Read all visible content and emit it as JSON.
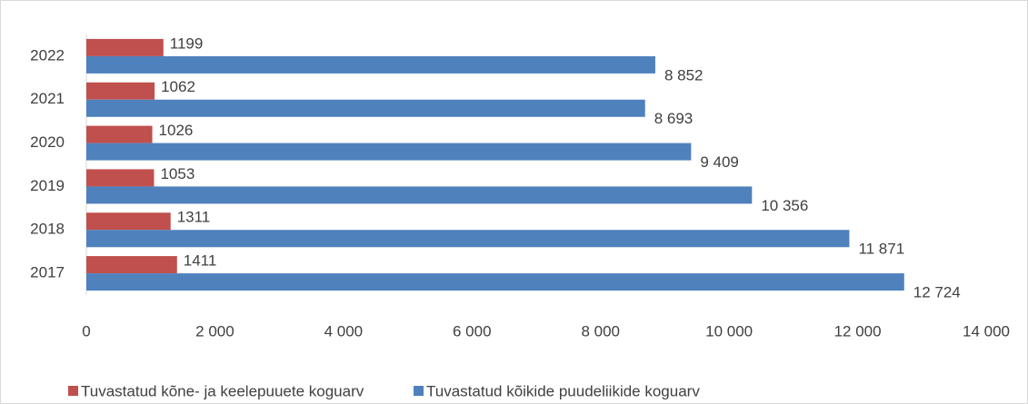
{
  "chart_data": {
    "type": "hbar",
    "categories": [
      "2022",
      "2021",
      "2020",
      "2019",
      "2018",
      "2017"
    ],
    "series": [
      {
        "name": "Tuvastatud kõne- ja keelepuuete koguarv",
        "color": "#c0504d",
        "values": [
          1199,
          1062,
          1026,
          1053,
          1311,
          1411
        ]
      },
      {
        "name": "Tuvastatud kõikide puudeliikide koguarv",
        "color": "#4f81bd",
        "values": [
          8852,
          8693,
          9409,
          10356,
          11871,
          12724
        ],
        "value_labels": [
          "8 852",
          "8 693",
          "9 409",
          "10 356",
          "11 871",
          "12 724"
        ]
      }
    ],
    "xlim": [
      0,
      14000
    ],
    "xticks": [
      0,
      {
        "value": 2000,
        "label": "2 000"
      },
      {
        "value": 4000,
        "label": "4 000"
      },
      {
        "value": 6000,
        "label": "6 000"
      },
      {
        "value": 8000,
        "label": "8 000"
      },
      {
        "value": 10000,
        "label": "10 000"
      },
      {
        "value": 12000,
        "label": "12 000"
      },
      {
        "value": 14000,
        "label": "14 000"
      }
    ],
    "legend": "bottom"
  }
}
